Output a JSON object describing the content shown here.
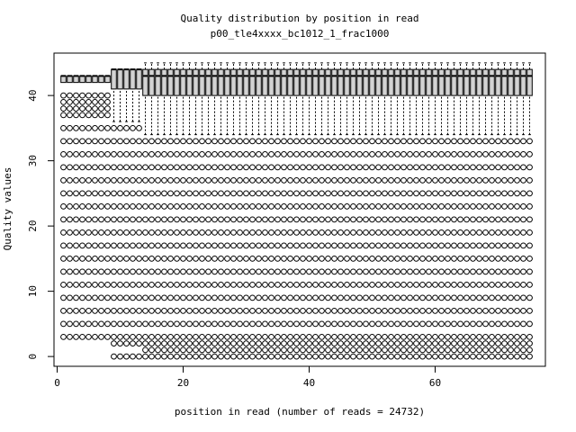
{
  "chart_data": {
    "type": "boxplot",
    "title": "Quality distribution by position in read",
    "subtitle": "p00_tle4xxxx_bc1012_1_frac1000",
    "xlabel": "position in read (number of reads = 24732)",
    "ylabel": "Quality values",
    "xlim": [
      -0.5,
      77.5
    ],
    "ylim": [
      -1.5,
      46.5
    ],
    "xticks": [
      0,
      20,
      40,
      60
    ],
    "yticks": [
      0,
      10,
      20,
      30,
      40
    ],
    "grid": false,
    "legend": "none",
    "n_positions": 75,
    "groups": [
      {
        "positions": [
          1,
          8
        ],
        "q1": 42,
        "median": 43,
        "q3": 43,
        "whisker_low": 42,
        "whisker_high": 43,
        "outliers": [
          3,
          5,
          7,
          9,
          11,
          13,
          15,
          17,
          19,
          21,
          23,
          25,
          27,
          29,
          31,
          33,
          35,
          37,
          38,
          39,
          40
        ]
      },
      {
        "positions": [
          9,
          13
        ],
        "q1": 41,
        "median": 44,
        "q3": 44,
        "whisker_low": 36,
        "whisker_high": 44,
        "outliers": [
          0,
          2,
          3,
          5,
          7,
          9,
          11,
          13,
          15,
          17,
          19,
          21,
          23,
          25,
          27,
          29,
          31,
          33,
          35
        ]
      },
      {
        "positions": [
          14,
          75
        ],
        "q1": 40,
        "median": 43,
        "q3": 44,
        "whisker_low": 34,
        "whisker_high": 45,
        "outliers": [
          0,
          1,
          2,
          3,
          5,
          7,
          9,
          11,
          13,
          15,
          17,
          19,
          21,
          23,
          25,
          27,
          29,
          31,
          33
        ]
      }
    ]
  }
}
